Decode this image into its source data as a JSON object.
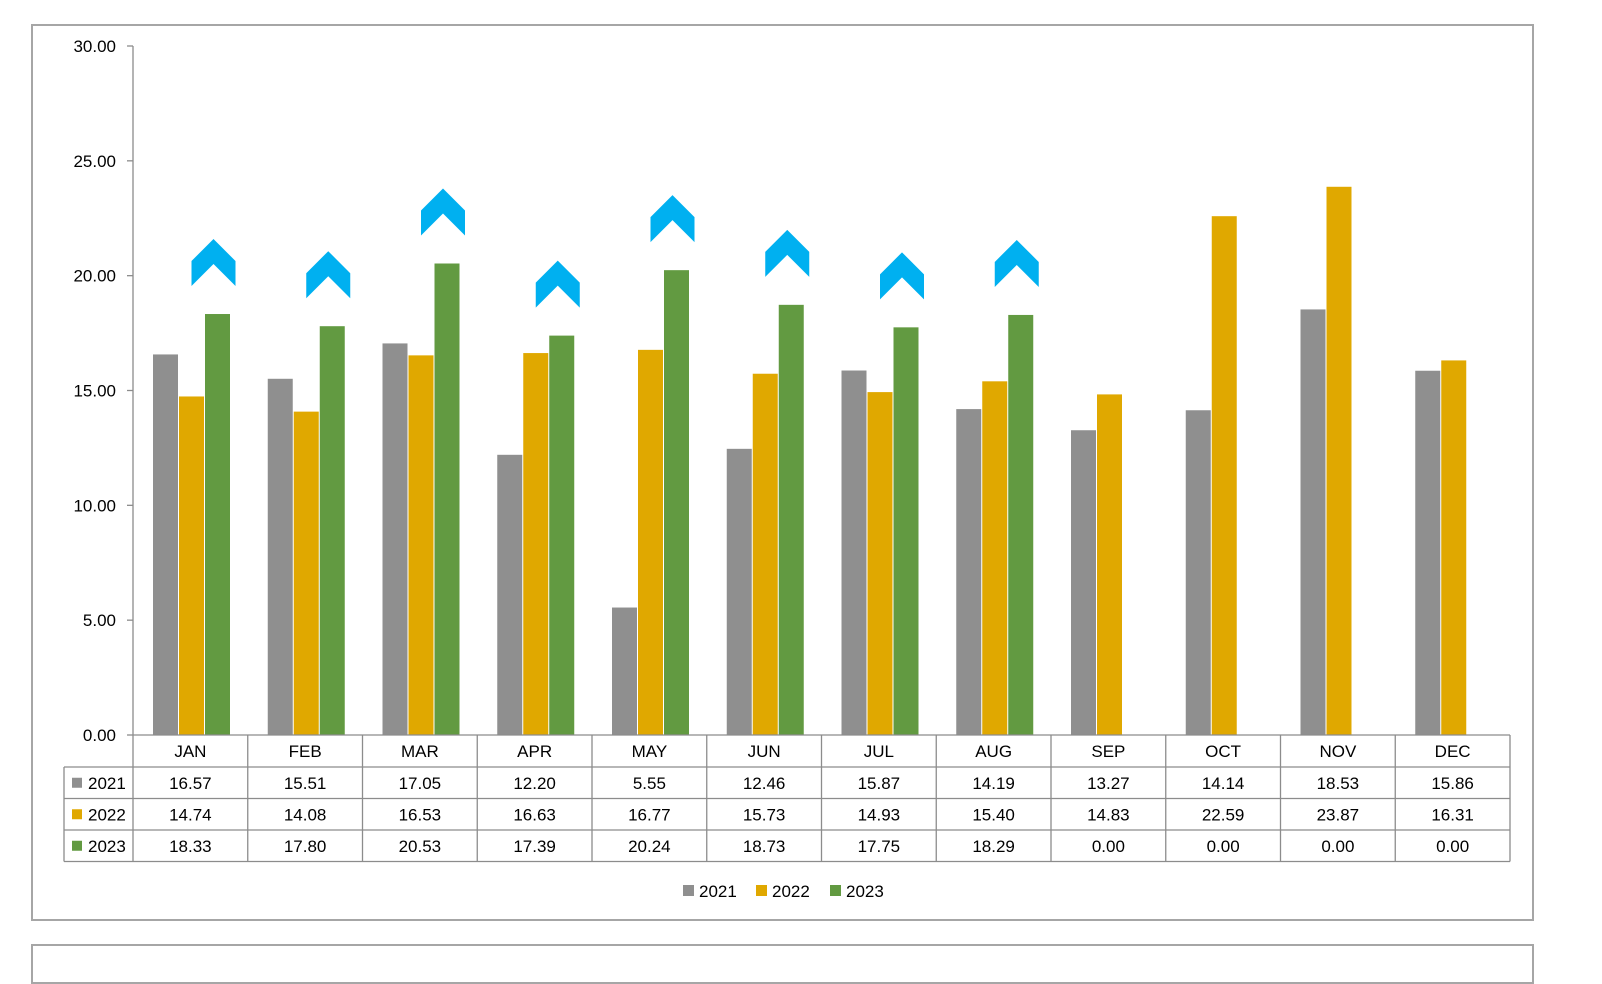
{
  "chart_data": {
    "type": "bar",
    "title": "",
    "xlabel": "",
    "ylabel": "",
    "ylim": [
      0,
      30
    ],
    "yticks": [
      "0.00",
      "5.00",
      "10.00",
      "15.00",
      "20.00",
      "25.00",
      "30.00"
    ],
    "ytick_values": [
      0,
      5,
      10,
      15,
      20,
      25,
      30
    ],
    "categories": [
      "JAN",
      "FEB",
      "MAR",
      "APR",
      "MAY",
      "JUN",
      "JUL",
      "AUG",
      "SEP",
      "OCT",
      "NOV",
      "DEC"
    ],
    "series": [
      {
        "name": "2021",
        "color": "#8f8f8f",
        "values": [
          16.57,
          15.51,
          17.05,
          12.2,
          5.55,
          12.46,
          15.87,
          14.19,
          13.27,
          14.14,
          18.53,
          15.86
        ],
        "labels": [
          "16.57",
          "15.51",
          "17.05",
          "12.20",
          "5.55",
          "12.46",
          "15.87",
          "14.19",
          "13.27",
          "14.14",
          "18.53",
          "15.86"
        ]
      },
      {
        "name": "2022",
        "color": "#e0a800",
        "values": [
          14.74,
          14.08,
          16.53,
          16.63,
          16.77,
          15.73,
          14.93,
          15.4,
          14.83,
          22.59,
          23.87,
          16.31
        ],
        "labels": [
          "14.74",
          "14.08",
          "16.53",
          "16.63",
          "16.77",
          "15.73",
          "14.93",
          "15.40",
          "14.83",
          "22.59",
          "23.87",
          "16.31"
        ]
      },
      {
        "name": "2023",
        "color": "#629a41",
        "values": [
          18.33,
          17.8,
          20.53,
          17.39,
          20.24,
          18.73,
          17.75,
          18.29,
          0.0,
          0.0,
          0.0,
          0.0
        ],
        "labels": [
          "18.33",
          "17.80",
          "20.53",
          "17.39",
          "20.24",
          "18.73",
          "17.75",
          "18.29",
          "0.00",
          "0.00",
          "0.00",
          "0.00"
        ]
      }
    ],
    "up_arrow_months": [
      "JAN",
      "FEB",
      "MAR",
      "APR",
      "MAY",
      "JUN",
      "JUL",
      "AUG"
    ],
    "arrow_icon": "chevron-up-icon",
    "arrow_color": "#00b0f0",
    "legend": {
      "placement": "bottom",
      "entries": [
        "2021",
        "2022",
        "2023"
      ]
    },
    "grid": false,
    "data_table": true
  }
}
